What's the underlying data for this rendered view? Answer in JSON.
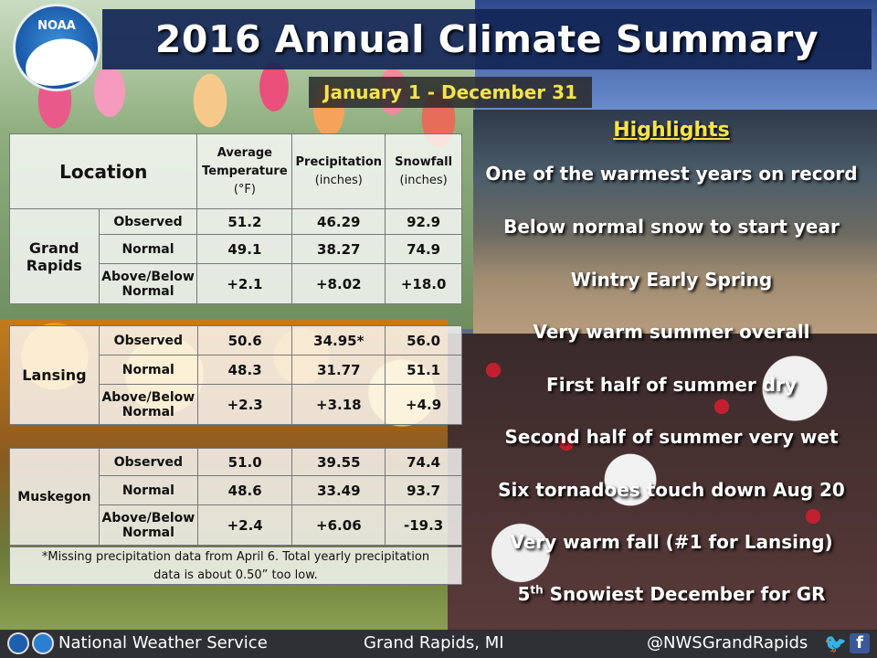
{
  "title": "2016 Annual Climate Summary",
  "logo_text": "NOAA",
  "date_range": "January  1 - December 31",
  "table": {
    "header": {
      "location": "Location",
      "avg_temp_line1": "Average",
      "avg_temp_line2": "Temperature",
      "avg_temp_unit": "(°F)",
      "precip": "Precipitation",
      "precip_unit": "(inches)",
      "snow": "Snowfall",
      "snow_unit": "(inches)"
    },
    "row_labels": {
      "observed": "Observed",
      "normal": "Normal",
      "above_below_1": "Above/Below",
      "above_below_2": "Normal"
    },
    "locations": [
      {
        "name_line1": "Grand",
        "name_line2": "Rapids",
        "observed": {
          "temp": "51.2",
          "precip": "46.29",
          "snow": "92.9"
        },
        "normal": {
          "temp": "49.1",
          "precip": "38.27",
          "snow": "74.9"
        },
        "departure": {
          "temp": "+2.1",
          "precip": "+8.02",
          "snow": "+18.0"
        }
      },
      {
        "name_line1": "Lansing",
        "observed": {
          "temp": "50.6",
          "precip": "34.95*",
          "snow": "56.0"
        },
        "normal": {
          "temp": "48.3",
          "precip": "31.77",
          "snow": "51.1"
        },
        "departure": {
          "temp": "+2.3",
          "precip": "+3.18",
          "snow": "+4.9"
        }
      },
      {
        "name_line1": "Muskegon",
        "observed": {
          "temp": "51.0",
          "precip": "39.55",
          "snow": "74.4"
        },
        "normal": {
          "temp": "48.6",
          "precip": "33.49",
          "snow": "93.7"
        },
        "departure": {
          "temp": "+2.4",
          "precip": "+6.06",
          "snow": "-19.3"
        }
      }
    ],
    "note_line1": "*Missing precipitation data from April 6. Total yearly precipitation",
    "note_line2": "data is about 0.50” too low."
  },
  "highlights": {
    "title": "Highlights",
    "items": [
      "One of the warmest years on record",
      "Below normal snow to start year",
      "Wintry Early Spring",
      "Very warm summer overall",
      "First half of summer dry",
      "Second half of summer very wet",
      "Six tornadoes touch down Aug 20",
      "Very warm fall (#1 for Lansing)"
    ],
    "last_prefix": "5",
    "last_sup": "th",
    "last_suffix": " Snowiest December for GR"
  },
  "footer": {
    "org": "National Weather Service",
    "location": "Grand Rapids, MI",
    "handle": "@NWSGrandRapids",
    "twitter_icon": "twitter-icon",
    "facebook_icon": "facebook-icon"
  },
  "colors": {
    "title_bar": "#122656",
    "date_text": "#f5e34a",
    "temp_departure": "#c0181e",
    "precip_departure": "#1a7a1a",
    "snow_positive": "#1e6ec0",
    "snow_negative": "#e06a10"
  }
}
